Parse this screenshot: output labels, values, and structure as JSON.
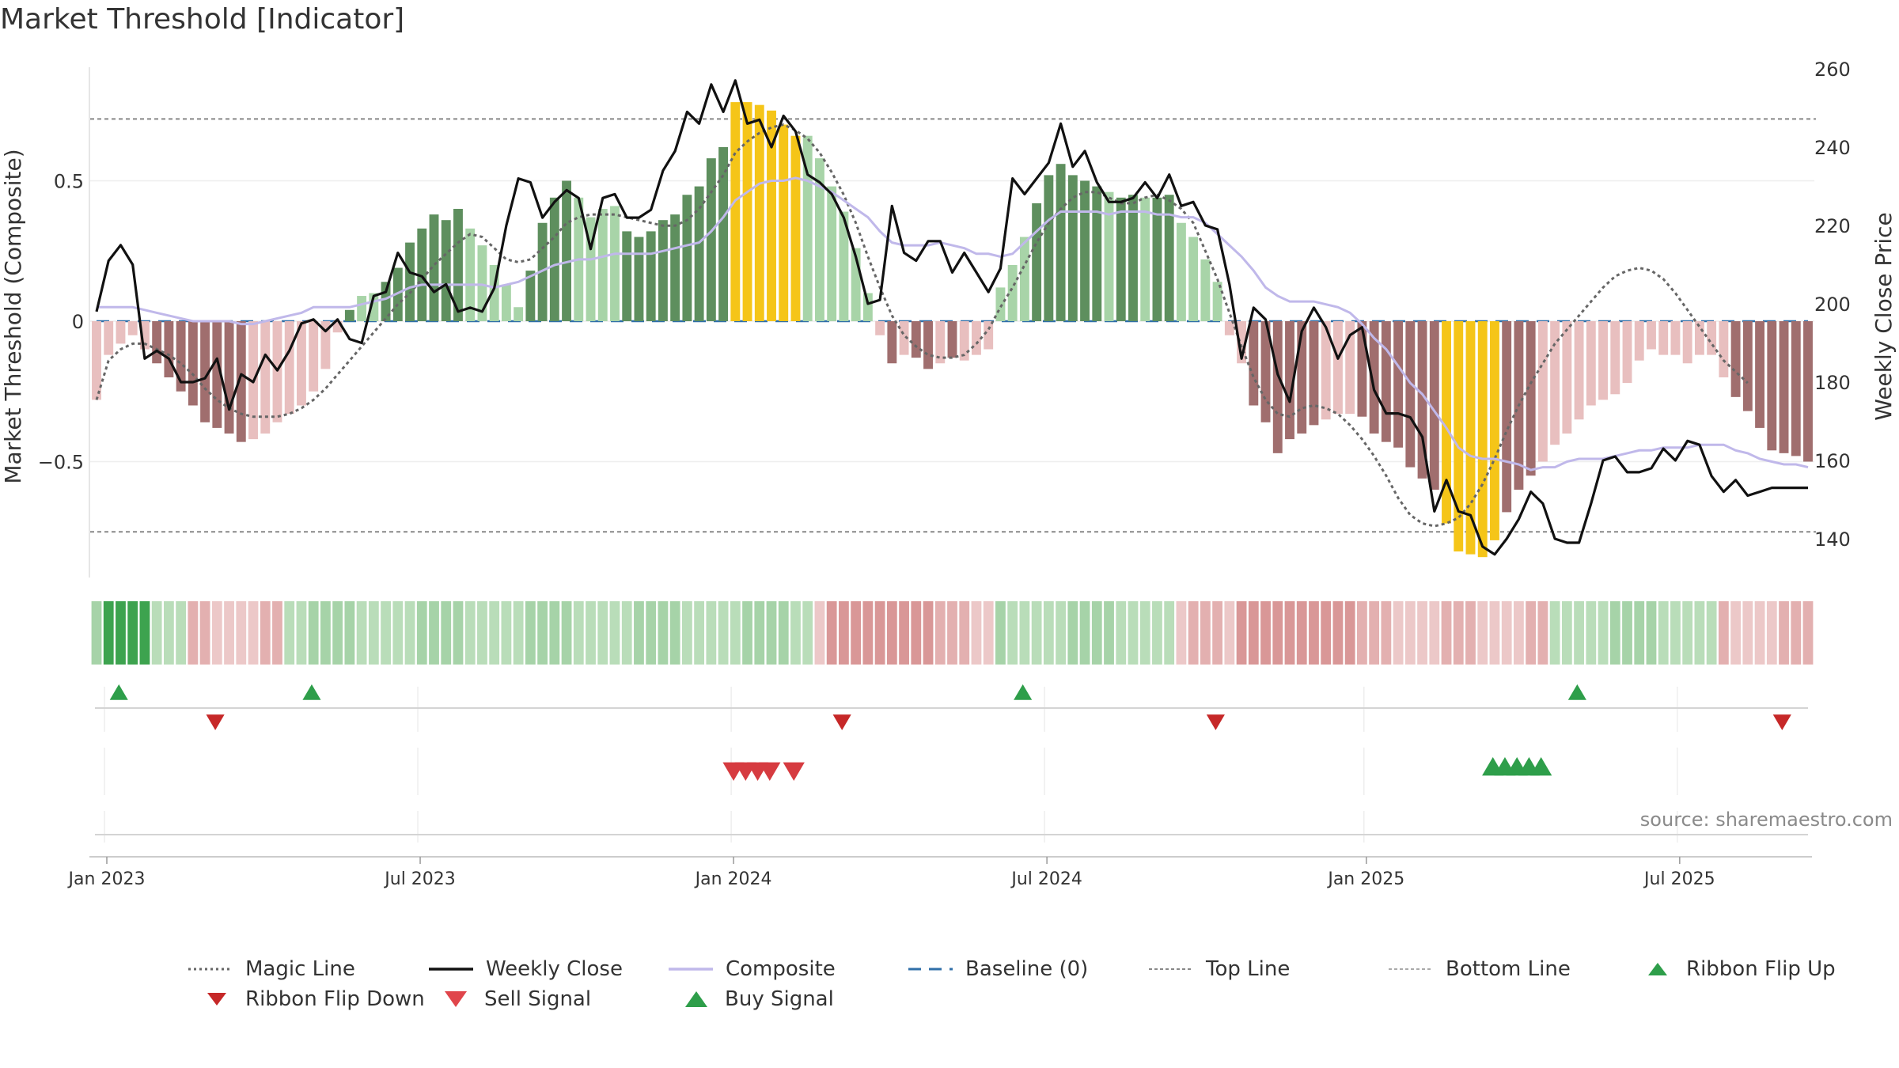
{
  "title": "Market Threshold [Indicator]",
  "source": "source: sharemaestro.com",
  "colors": {
    "bar_pos_strong": "#5e8f5e",
    "bar_pos_weak": "#a8d4a8",
    "bar_neg_strong": "#a06e6e",
    "bar_neg_weak": "#e8bfbf",
    "bar_extreme": "#f5c518",
    "close": "#111111",
    "composite": "#c0b8ea",
    "magic": "#666666",
    "baseline": "#2f6fa8",
    "buy": "#2e9e4a",
    "sell": "#d63b40"
  },
  "chart_data": {
    "type": "bar",
    "title": "Market Threshold [Indicator]",
    "ylabel": "Market Threshold (Composite)",
    "y2label": "Weekly Close Price",
    "ylim": [
      -0.92,
      0.92
    ],
    "y2lim": [
      130,
      260
    ],
    "yticks": [
      {
        "v": 0.5,
        "label": "0.5"
      },
      {
        "v": 0,
        "label": "0"
      },
      {
        "v": -0.5,
        "label": "−0.5"
      }
    ],
    "y2ticks": [
      140,
      160,
      180,
      200,
      220,
      240,
      260
    ],
    "xticks": [
      "Jan 2023",
      "Jul 2023",
      "Jan 2024",
      "Jul 2024",
      "Jan 2025",
      "Jul 2025"
    ],
    "top_line": 0.72,
    "bottom_line": -0.75,
    "weeks": 143,
    "threshold_bars": [
      {
        "from": 0,
        "to": 4,
        "values": [
          -0.28,
          -0.12,
          -0.08,
          -0.05,
          -0.1
        ]
      },
      {
        "from": 5,
        "to": 12,
        "values": [
          -0.15,
          -0.2,
          -0.25,
          -0.3,
          -0.36,
          -0.38,
          -0.4,
          -0.43
        ]
      },
      {
        "from": 13,
        "to": 18,
        "values": [
          -0.42,
          -0.4,
          -0.36,
          -0.33,
          -0.3,
          -0.25
        ]
      },
      {
        "from": 19,
        "to": 27,
        "values": [
          -0.17,
          -0.04,
          0.04,
          0.09,
          0.1,
          0.14,
          0.19,
          0.28,
          0.33
        ]
      },
      {
        "from": 28,
        "to": 34,
        "values": [
          0.38,
          0.36,
          0.4,
          0.33,
          0.27,
          0.2,
          0.13
        ]
      },
      {
        "from": 35,
        "to": 43,
        "values": [
          0.05,
          0.18,
          0.35,
          0.44,
          0.5,
          0.44,
          0.37,
          0.4,
          0.41
        ]
      },
      {
        "from": 44,
        "to": 52,
        "values": [
          0.32,
          0.3,
          0.32,
          0.36,
          0.38,
          0.45,
          0.48,
          0.58,
          0.62
        ]
      },
      {
        "from": 53,
        "to": 58,
        "values": [
          0.78,
          0.78,
          0.77,
          0.75,
          0.7,
          0.66
        ]
      },
      {
        "from": 59,
        "to": 64,
        "values": [
          0.66,
          0.58,
          0.48,
          0.39,
          0.26,
          0.1
        ]
      },
      {
        "from": 65,
        "to": 74,
        "values": [
          -0.05,
          -0.15,
          -0.12,
          -0.13,
          -0.17,
          -0.15,
          -0.13,
          -0.14,
          -0.12,
          -0.1
        ]
      },
      {
        "from": 75,
        "to": 83,
        "values": [
          0.12,
          0.2,
          0.3,
          0.42,
          0.52,
          0.56,
          0.52,
          0.5,
          0.48
        ]
      },
      {
        "from": 84,
        "to": 92,
        "values": [
          0.46,
          0.44,
          0.45,
          0.44,
          0.44,
          0.45,
          0.35,
          0.3,
          0.22
        ]
      },
      {
        "from": 93,
        "to": 102,
        "values": [
          0.14,
          -0.05,
          -0.15,
          -0.3,
          -0.36,
          -0.47,
          -0.42,
          -0.4,
          -0.37,
          -0.35
        ]
      },
      {
        "from": 103,
        "to": 111,
        "values": [
          -0.33,
          -0.33,
          -0.34,
          -0.4,
          -0.43,
          -0.45,
          -0.52,
          -0.56,
          -0.6
        ]
      },
      {
        "from": 112,
        "to": 116,
        "values": [
          -0.72,
          -0.82,
          -0.83,
          -0.84,
          -0.78
        ]
      },
      {
        "from": 117,
        "to": 126,
        "values": [
          -0.68,
          -0.6,
          -0.55,
          -0.5,
          -0.44,
          -0.4,
          -0.35,
          -0.3,
          -0.28,
          -0.26
        ]
      },
      {
        "from": 127,
        "to": 142,
        "values": [
          -0.22,
          -0.14,
          -0.1,
          -0.12,
          -0.12,
          -0.15,
          -0.12,
          -0.12,
          -0.2,
          -0.27,
          -0.32,
          -0.38,
          -0.46,
          -0.47,
          -0.48,
          -0.5
        ]
      }
    ],
    "bar_shading": {
      "strong": [
        5,
        6,
        7,
        8,
        9,
        10,
        11,
        12,
        21,
        24,
        25,
        26,
        27,
        28,
        29,
        30,
        36,
        37,
        38,
        39,
        44,
        45,
        46,
        47,
        48,
        49,
        50,
        51,
        52,
        66,
        68,
        69,
        71,
        78,
        79,
        80,
        81,
        82,
        83,
        85,
        86,
        88,
        89,
        96,
        97,
        98,
        99,
        100,
        101,
        105,
        106,
        107,
        108,
        109,
        110,
        111,
        116,
        117,
        118,
        119,
        136,
        137,
        138,
        139,
        140,
        141,
        142
      ],
      "extreme": [
        53,
        54,
        55,
        56,
        57,
        58,
        112,
        113,
        114,
        115,
        116
      ]
    },
    "series": [
      {
        "name": "Weekly Close",
        "values": [
          198,
          211,
          215,
          210,
          186,
          188,
          186,
          180,
          180,
          181,
          186,
          173,
          182,
          180,
          187,
          183,
          188,
          195,
          196,
          193,
          196,
          191,
          190,
          202,
          203,
          213,
          208,
          207,
          203,
          205,
          198,
          199,
          198,
          204,
          220,
          232,
          231,
          222,
          226,
          229,
          227,
          214,
          227,
          228,
          222,
          222,
          224,
          234,
          239,
          249,
          246,
          256,
          249,
          257,
          246,
          247,
          240,
          248,
          244,
          233,
          231,
          228,
          222,
          212,
          200,
          201,
          225,
          213,
          211,
          216,
          216,
          208,
          213,
          208,
          203,
          209,
          232,
          228,
          232,
          236,
          246,
          235,
          239,
          231,
          226,
          226,
          227,
          231,
          227,
          233,
          225,
          226,
          220,
          219,
          205,
          186,
          199,
          196,
          182,
          175,
          193,
          199,
          194,
          186,
          192,
          194,
          178,
          172,
          172,
          171,
          166,
          147,
          155,
          147,
          146,
          138,
          136,
          140,
          145,
          152,
          149,
          140,
          139,
          139,
          149,
          160,
          161,
          157,
          157,
          158,
          163,
          160,
          165,
          164,
          156,
          152,
          155,
          151,
          152,
          153,
          153,
          153,
          153
        ]
      },
      {
        "name": "Composite",
        "values": [
          0.05,
          0.05,
          0.05,
          0.05,
          0.04,
          0.03,
          0.02,
          0.01,
          0,
          0,
          0,
          0,
          -0.01,
          -0.01,
          0,
          0.01,
          0.02,
          0.03,
          0.05,
          0.05,
          0.05,
          0.05,
          0.06,
          0.07,
          0.08,
          0.1,
          0.12,
          0.13,
          0.13,
          0.13,
          0.13,
          0.13,
          0.13,
          0.12,
          0.13,
          0.14,
          0.16,
          0.18,
          0.2,
          0.21,
          0.22,
          0.22,
          0.23,
          0.24,
          0.24,
          0.24,
          0.24,
          0.25,
          0.26,
          0.27,
          0.28,
          0.32,
          0.37,
          0.43,
          0.46,
          0.49,
          0.5,
          0.5,
          0.51,
          0.5,
          0.48,
          0.46,
          0.43,
          0.4,
          0.37,
          0.32,
          0.28,
          0.27,
          0.27,
          0.27,
          0.28,
          0.27,
          0.26,
          0.24,
          0.24,
          0.23,
          0.24,
          0.28,
          0.32,
          0.36,
          0.39,
          0.39,
          0.39,
          0.39,
          0.38,
          0.39,
          0.39,
          0.39,
          0.38,
          0.38,
          0.37,
          0.37,
          0.35,
          0.31,
          0.27,
          0.23,
          0.18,
          0.12,
          0.09,
          0.07,
          0.07,
          0.07,
          0.06,
          0.05,
          0.03,
          -0.01,
          -0.06,
          -0.1,
          -0.16,
          -0.22,
          -0.26,
          -0.32,
          -0.38,
          -0.45,
          -0.48,
          -0.49,
          -0.49,
          -0.5,
          -0.51,
          -0.53,
          -0.52,
          -0.52,
          -0.5,
          -0.49,
          -0.49,
          -0.49,
          -0.48,
          -0.47,
          -0.46,
          -0.46,
          -0.45,
          -0.45,
          -0.45,
          -0.44,
          -0.44,
          -0.44,
          -0.46,
          -0.47,
          -0.49,
          -0.5,
          -0.51,
          -0.51,
          -0.52
        ]
      },
      {
        "name": "Magic Line",
        "values": [
          -0.28,
          -0.14,
          -0.1,
          -0.08,
          -0.08,
          -0.1,
          -0.12,
          -0.15,
          -0.19,
          -0.24,
          -0.28,
          -0.31,
          -0.33,
          -0.34,
          -0.34,
          -0.34,
          -0.33,
          -0.31,
          -0.28,
          -0.24,
          -0.19,
          -0.14,
          -0.09,
          -0.04,
          0.01,
          0.06,
          0.1,
          0.15,
          0.2,
          0.24,
          0.28,
          0.31,
          0.3,
          0.26,
          0.22,
          0.21,
          0.22,
          0.26,
          0.3,
          0.35,
          0.37,
          0.38,
          0.38,
          0.38,
          0.37,
          0.36,
          0.35,
          0.34,
          0.34,
          0.36,
          0.4,
          0.46,
          0.52,
          0.6,
          0.64,
          0.67,
          0.69,
          0.7,
          0.68,
          0.65,
          0.6,
          0.53,
          0.45,
          0.35,
          0.23,
          0.12,
          0.02,
          -0.05,
          -0.09,
          -0.12,
          -0.13,
          -0.13,
          -0.12,
          -0.08,
          -0.03,
          0.05,
          0.12,
          0.2,
          0.28,
          0.35,
          0.4,
          0.44,
          0.46,
          0.46,
          0.44,
          0.42,
          0.42,
          0.44,
          0.45,
          0.43,
          0.4,
          0.35,
          0.25,
          0.15,
          0.03,
          -0.09,
          -0.2,
          -0.28,
          -0.33,
          -0.34,
          -0.31,
          -0.3,
          -0.31,
          -0.33,
          -0.37,
          -0.42,
          -0.48,
          -0.55,
          -0.63,
          -0.69,
          -0.72,
          -0.73,
          -0.72,
          -0.7,
          -0.65,
          -0.58,
          -0.49,
          -0.39,
          -0.3,
          -0.22,
          -0.15,
          -0.08,
          -0.03,
          0.02,
          0.07,
          0.12,
          0.16,
          0.18,
          0.19,
          0.18,
          0.15,
          0.1,
          0.04,
          -0.02,
          -0.08,
          -0.14,
          -0.18,
          -0.22
        ]
      }
    ],
    "ribbon": {
      "strong_green": [
        1,
        2,
        3,
        4
      ],
      "green_ranges": [
        [
          0,
          7
        ],
        [
          16,
          59
        ],
        [
          75,
          89
        ],
        [
          121,
          134
        ]
      ],
      "red_ranges": [
        [
          8,
          15
        ],
        [
          60,
          74
        ],
        [
          90,
          120
        ],
        [
          135,
          142
        ]
      ],
      "strong_red": [
        61,
        62,
        63,
        64,
        65,
        66,
        67,
        68,
        69,
        95,
        96,
        97,
        98,
        99,
        100,
        101,
        102,
        103,
        104
      ]
    },
    "ribbon_flip_up": [
      1,
      17,
      76,
      122
    ],
    "ribbon_flip_down": [
      9,
      61,
      92,
      139
    ],
    "sell_signals": [
      52,
      53,
      54,
      55,
      57
    ],
    "buy_signals": [
      115,
      116,
      117,
      118,
      119
    ],
    "legend": [
      "Magic Line",
      "Weekly Close",
      "Composite",
      "Baseline (0)",
      "Top Line",
      "Bottom Line",
      "Ribbon Flip Up",
      "Ribbon Flip Down",
      "Sell Signal",
      "Buy Signal"
    ]
  }
}
